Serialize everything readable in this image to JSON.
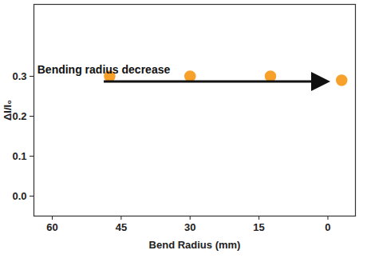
{
  "chart_data": {
    "type": "scatter",
    "x_label": "Bend Radius (mm)",
    "y_label": "ΔI/I₀",
    "annotation": "Bending radius decrease",
    "x": [
      47.5,
      30,
      12.5,
      -3
    ],
    "values": [
      0.3,
      0.3,
      0.3,
      0.29
    ],
    "color": "#f7a12b",
    "marker": "circle",
    "xlim": [
      64,
      -6
    ],
    "xticks": [
      60,
      45,
      30,
      15,
      0
    ],
    "ylim": [
      -0.05,
      0.48
    ],
    "yticks": [
      {
        "value": 0,
        "label": "0.0"
      },
      0.1,
      0.2,
      0.3
    ],
    "grid": false
  }
}
